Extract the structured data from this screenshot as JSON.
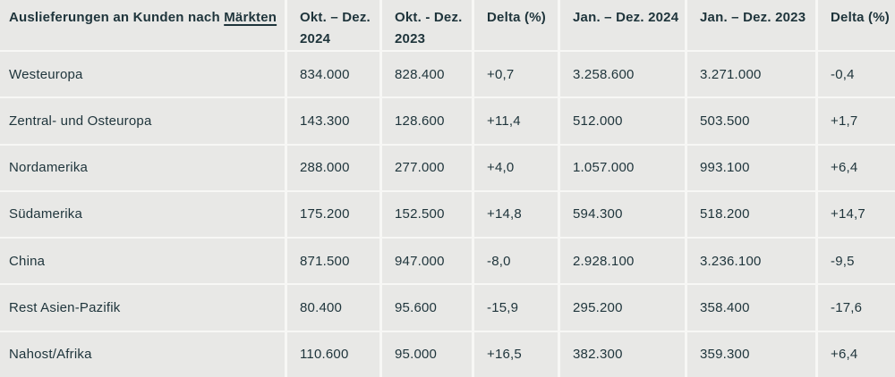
{
  "colors": {
    "cell_background": "#e8e8e6",
    "gap_background": "#f7f7f5",
    "text": "#1e343b"
  },
  "chart_data": {
    "type": "table",
    "title": "Auslieferungen an Kunden nach Märkten",
    "header": {
      "label_prefix": "Auslieferungen an Kunden nach ",
      "label_linked_term": "Märkten",
      "columns": [
        "Okt. – Dez. 2024",
        "Okt. - Dez. 2023",
        "Delta (%)",
        "Jan. – Dez. 2024",
        "Jan. – Dez. 2023",
        "Delta (%)"
      ]
    },
    "rows": [
      {
        "market": "Westeuropa",
        "values": [
          "834.000",
          "828.400",
          "+0,7",
          "3.258.600",
          "3.271.000",
          "-0,4"
        ]
      },
      {
        "market": "Zentral- und Osteuropa",
        "values": [
          "143.300",
          "128.600",
          "+11,4",
          "512.000",
          "503.500",
          "+1,7"
        ]
      },
      {
        "market": "Nordamerika",
        "values": [
          "288.000",
          "277.000",
          "+4,0",
          "1.057.000",
          "993.100",
          "+6,4"
        ]
      },
      {
        "market": "Südamerika",
        "values": [
          "175.200",
          "152.500",
          "+14,8",
          "594.300",
          "518.200",
          "+14,7"
        ]
      },
      {
        "market": "China",
        "values": [
          "871.500",
          "947.000",
          "-8,0",
          "2.928.100",
          "3.236.100",
          "-9,5"
        ]
      },
      {
        "market": "Rest Asien-Pazifik",
        "values": [
          "80.400",
          "95.600",
          "-15,9",
          "295.200",
          "358.400",
          "-17,6"
        ]
      },
      {
        "market": "Nahost/Afrika",
        "values": [
          "110.600",
          "95.000",
          "+16,5",
          "382.300",
          "359.300",
          "+6,4"
        ]
      }
    ]
  }
}
